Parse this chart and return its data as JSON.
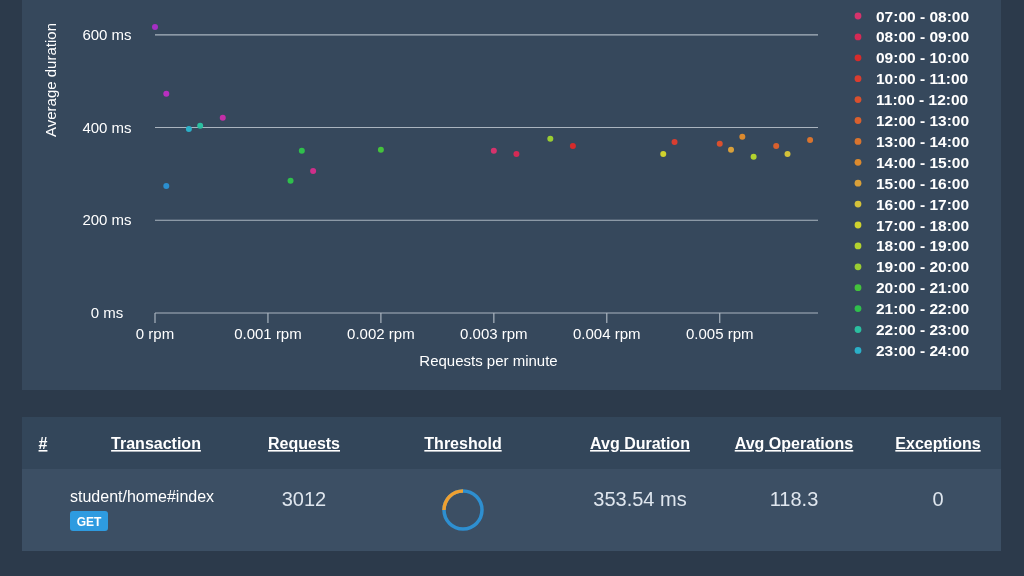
{
  "chart_data": [
    {
      "type": "scatter",
      "xlabel": "Requests per minute",
      "ylabel": "Average duration",
      "xlim": [
        0,
        0.00587
      ],
      "ylim": [
        0,
        675
      ],
      "xticks": [
        {
          "value": 0,
          "label": "0 rpm"
        },
        {
          "value": 0.001,
          "label": "0.001 rpm"
        },
        {
          "value": 0.002,
          "label": "0.002 rpm"
        },
        {
          "value": 0.003,
          "label": "0.003 rpm"
        },
        {
          "value": 0.004,
          "label": "0.004 rpm"
        },
        {
          "value": 0.005,
          "label": "0.005 rpm"
        }
      ],
      "yticks": [
        {
          "value": 0,
          "label": "0 ms"
        },
        {
          "value": 200,
          "label": "200 ms"
        },
        {
          "value": 400,
          "label": "400 ms"
        },
        {
          "value": 600,
          "label": "600 ms"
        }
      ],
      "grid": "y",
      "legend": "right",
      "marker": "circle",
      "series": [
        {
          "color": "#a52fc4",
          "x": [
            0
          ],
          "values": [
            617
          ]
        },
        {
          "color": "#b82fc0",
          "x": [
            0.0001
          ],
          "values": [
            473
          ]
        },
        {
          "color": "#c42fa8",
          "x": [
            0.0006
          ],
          "values": [
            421
          ]
        },
        {
          "color": "#cf2f8a",
          "x": [
            0.0014
          ],
          "values": [
            306
          ]
        },
        {
          "name": "07:00 - 08:00",
          "color": "#d6336c",
          "x": [
            0.003
          ],
          "values": [
            350
          ]
        },
        {
          "name": "08:00 - 09:00",
          "color": "#d42a55",
          "x": [
            0.0032
          ],
          "values": [
            343
          ]
        },
        {
          "name": "09:00 - 10:00",
          "color": "#d62b2b",
          "x": [
            0.0037
          ],
          "values": [
            360
          ]
        },
        {
          "name": "10:00 - 11:00",
          "color": "#d93d30",
          "x": [
            0.0046
          ],
          "values": [
            369
          ]
        },
        {
          "name": "11:00 - 12:00",
          "color": "#d9502e",
          "x": [
            0.005
          ],
          "values": [
            365
          ]
        },
        {
          "name": "12:00 - 13:00",
          "color": "#d9602e",
          "x": [
            0.0055
          ],
          "values": [
            360
          ]
        },
        {
          "name": "13:00 - 14:00",
          "color": "#d9742e",
          "x": [
            0.0058
          ],
          "values": [
            373
          ]
        },
        {
          "name": "14:00 - 15:00",
          "color": "#dc8a2e",
          "x": [
            0.0052
          ],
          "values": [
            380
          ]
        },
        {
          "name": "15:00 - 16:00",
          "color": "#d9a03a",
          "x": [
            0.0051
          ],
          "values": [
            352
          ]
        },
        {
          "name": "16:00 - 17:00",
          "color": "#d4c23a",
          "x": [
            0.0056
          ],
          "values": [
            343
          ]
        },
        {
          "name": "17:00 - 18:00",
          "color": "#cfd22e",
          "x": [
            0.0045
          ],
          "values": [
            343
          ]
        },
        {
          "name": "18:00 - 19:00",
          "color": "#b3d22e",
          "x": [
            0.0053
          ],
          "values": [
            337
          ]
        },
        {
          "name": "19:00 - 20:00",
          "color": "#9acd32",
          "x": [
            0.0035
          ],
          "values": [
            376
          ]
        },
        {
          "name": "20:00 - 21:00",
          "color": "#44c23c",
          "x": [
            0.002
          ],
          "values": [
            352
          ]
        },
        {
          "name": "21:00 - 22:00",
          "color": "#2fbf4c",
          "x": [
            0.0012,
            0.0013
          ],
          "values": [
            285,
            350
          ]
        },
        {
          "name": "22:00 - 23:00",
          "color": "#2bbfa0",
          "x": [
            0.0004
          ],
          "values": [
            404
          ]
        },
        {
          "name": "23:00 - 24:00",
          "color": "#2bb0c8",
          "x": [
            0.0003
          ],
          "values": [
            397
          ]
        },
        {
          "color": "#2b8fd0",
          "x": [
            0.0001
          ],
          "values": [
            274
          ]
        }
      ]
    },
    {
      "type": "other",
      "annotations": [
        "#",
        "Transaction",
        "Requests",
        "Threshold",
        "Avg Duration",
        "Avg Operations",
        "Exceptions",
        "student/home#index",
        "GET",
        "3012",
        "353.54 ms",
        "118.3",
        "0"
      ]
    }
  ]
}
